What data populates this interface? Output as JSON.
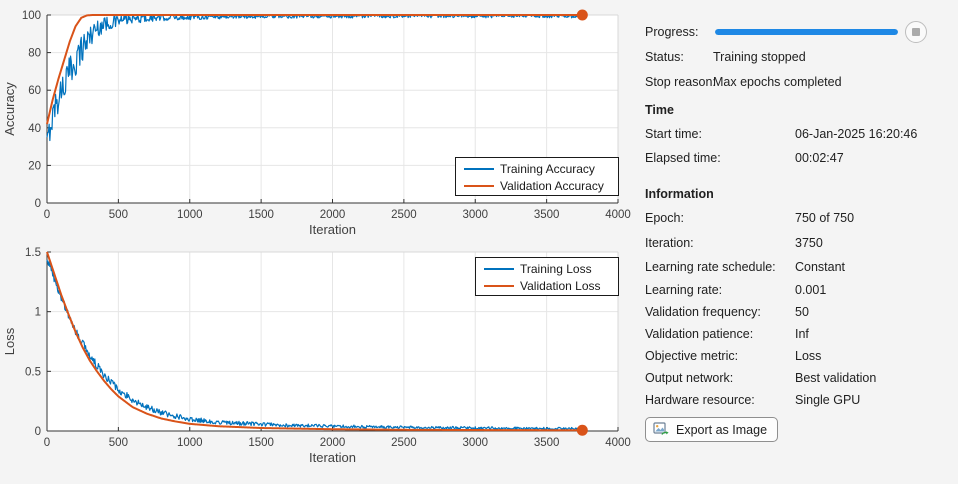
{
  "panel": {
    "progress_label": "Progress:",
    "progress_percent": 100,
    "status_label": "Status:",
    "status_value": "Training stopped",
    "stop_reason_label": "Stop reason:",
    "stop_reason_value": "Max epochs completed",
    "time_header": "Time",
    "time_rows": [
      {
        "label": "Start time:",
        "value": "06-Jan-2025 16:20:46"
      },
      {
        "label": "Elapsed time:",
        "value": "00:02:47"
      }
    ],
    "info_header": "Information",
    "info_rows": [
      {
        "label": "Epoch:",
        "value": "750 of 750"
      },
      {
        "label": "Iteration:",
        "value": "3750"
      },
      {
        "label": "Learning rate schedule:",
        "value": "Constant"
      },
      {
        "label": "Learning rate:",
        "value": "0.001"
      },
      {
        "label": "Validation frequency:",
        "value": "50"
      },
      {
        "label": "Validation patience:",
        "value": "Inf"
      },
      {
        "label": "Objective metric:",
        "value": "Loss"
      },
      {
        "label": "Output network:",
        "value": "Best validation"
      },
      {
        "label": "Hardware resource:",
        "value": "Single GPU"
      }
    ],
    "export_button": "Export as Image",
    "stop_button_icon": "stop-square"
  },
  "colors": {
    "training_line": "#0072BD",
    "validation_line": "#D95319",
    "progress_bar": "#1e88e5",
    "grid": "#e6e6e6",
    "axis": "#333333",
    "box_light": "#d9d9d9"
  },
  "chart_data": [
    {
      "type": "line",
      "title": "",
      "xlabel": "Iteration",
      "ylabel": "Accuracy",
      "xlim": [
        0,
        4000
      ],
      "ylim": [
        0,
        100
      ],
      "xticks": [
        0,
        500,
        1000,
        1500,
        2000,
        2500,
        3000,
        3500,
        4000
      ],
      "yticks": [
        0,
        20,
        40,
        60,
        80,
        100
      ],
      "grid": true,
      "legend_position": "lower right inside",
      "end_iteration": 3750,
      "series": [
        {
          "name": "Training Accuracy",
          "color": "#0072BD",
          "style": "noisy",
          "keypoints": [
            [
              0,
              32
            ],
            [
              50,
              50
            ],
            [
              100,
              60
            ],
            [
              150,
              68
            ],
            [
              200,
              76
            ],
            [
              250,
              83
            ],
            [
              300,
              89
            ],
            [
              350,
              93
            ],
            [
              400,
              95
            ],
            [
              500,
              97
            ],
            [
              600,
              98
            ],
            [
              800,
              98.6
            ],
            [
              1000,
              99
            ],
            [
              1500,
              99.3
            ],
            [
              2500,
              99.5
            ],
            [
              3750,
              99.5
            ]
          ],
          "noise": [
            [
              0,
              5
            ],
            [
              50,
              8
            ],
            [
              150,
              9
            ],
            [
              250,
              8
            ],
            [
              350,
              5
            ],
            [
              500,
              3
            ],
            [
              700,
              2
            ],
            [
              1000,
              1.5
            ],
            [
              1500,
              1
            ],
            [
              3750,
              1
            ]
          ],
          "end_marker": false
        },
        {
          "name": "Validation Accuracy",
          "color": "#D95319",
          "style": "smooth",
          "keypoints": [
            [
              0,
              42
            ],
            [
              40,
              55
            ],
            [
              80,
              66
            ],
            [
              120,
              76
            ],
            [
              160,
              86
            ],
            [
              200,
              94
            ],
            [
              240,
              98.5
            ],
            [
              280,
              99.8
            ],
            [
              320,
              100
            ],
            [
              3750,
              100
            ]
          ],
          "noise": [
            [
              0,
              0
            ]
          ],
          "end_marker": true,
          "final_value": 100
        }
      ]
    },
    {
      "type": "line",
      "title": "",
      "xlabel": "Iteration",
      "ylabel": "Loss",
      "xlim": [
        0,
        4000
      ],
      "ylim": [
        0,
        1.5
      ],
      "xticks": [
        0,
        500,
        1000,
        1500,
        2000,
        2500,
        3000,
        3500,
        4000
      ],
      "yticks": [
        0,
        0.5,
        1,
        1.5
      ],
      "grid": true,
      "legend_position": "upper right inside",
      "end_iteration": 3750,
      "series": [
        {
          "name": "Training Loss",
          "color": "#0072BD",
          "style": "noisy",
          "keypoints": [
            [
              0,
              1.45
            ],
            [
              50,
              1.28
            ],
            [
              100,
              1.12
            ],
            [
              150,
              0.97
            ],
            [
              200,
              0.84
            ],
            [
              250,
              0.73
            ],
            [
              300,
              0.63
            ],
            [
              350,
              0.55
            ],
            [
              400,
              0.47
            ],
            [
              450,
              0.41
            ],
            [
              500,
              0.35
            ],
            [
              600,
              0.26
            ],
            [
              700,
              0.2
            ],
            [
              800,
              0.155
            ],
            [
              900,
              0.125
            ],
            [
              1000,
              0.1
            ],
            [
              1200,
              0.075
            ],
            [
              1500,
              0.055
            ],
            [
              2000,
              0.04
            ],
            [
              2500,
              0.03
            ],
            [
              3000,
              0.025
            ],
            [
              3750,
              0.02
            ]
          ],
          "noise": [
            [
              0,
              0.03
            ],
            [
              300,
              0.035
            ],
            [
              600,
              0.028
            ],
            [
              1000,
              0.02
            ],
            [
              2000,
              0.013
            ],
            [
              3750,
              0.01
            ]
          ],
          "end_marker": false
        },
        {
          "name": "Validation Loss",
          "color": "#D95319",
          "style": "smooth",
          "keypoints": [
            [
              0,
              1.5
            ],
            [
              50,
              1.32
            ],
            [
              100,
              1.14
            ],
            [
              150,
              0.98
            ],
            [
              200,
              0.83
            ],
            [
              250,
              0.7
            ],
            [
              300,
              0.59
            ],
            [
              350,
              0.5
            ],
            [
              400,
              0.42
            ],
            [
              450,
              0.35
            ],
            [
              500,
              0.29
            ],
            [
              600,
              0.2
            ],
            [
              700,
              0.145
            ],
            [
              800,
              0.105
            ],
            [
              900,
              0.08
            ],
            [
              1000,
              0.06
            ],
            [
              1200,
              0.04
            ],
            [
              1500,
              0.025
            ],
            [
              2000,
              0.015
            ],
            [
              2500,
              0.01
            ],
            [
              3000,
              0.008
            ],
            [
              3750,
              0.006
            ]
          ],
          "noise": [
            [
              0,
              0
            ]
          ],
          "end_marker": true,
          "final_value": 0.006
        }
      ]
    }
  ]
}
